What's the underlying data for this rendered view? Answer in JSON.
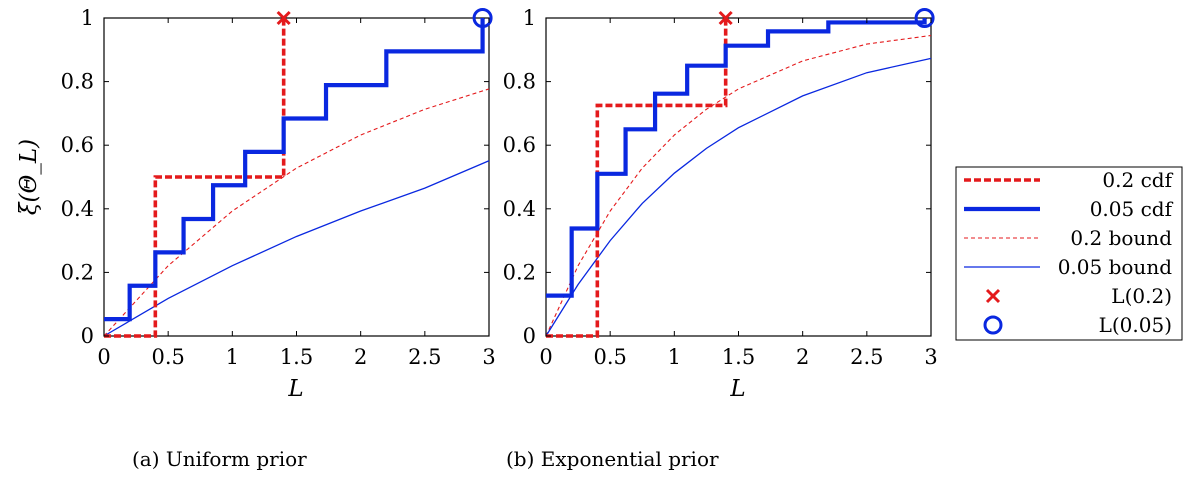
{
  "chart_data": [
    {
      "type": "line",
      "caption": "(a) Uniform prior",
      "xlabel": "L",
      "ylabel": "ξ(Θ_L)",
      "xlim": [
        0,
        3
      ],
      "ylim": [
        0,
        1
      ],
      "xticks": [
        "0",
        "0.5",
        "1",
        "1.5",
        "2",
        "2.5",
        "3"
      ],
      "yticks": [
        "0",
        "0.2",
        "0.4",
        "0.6",
        "0.8",
        "1"
      ],
      "series": [
        {
          "name": "0.2 cdf",
          "kind": "step",
          "color": "#e41a1c",
          "style": "dashed-thick",
          "x": [
            0,
            0.4,
            0.4,
            1.4,
            1.4
          ],
          "y": [
            0,
            0,
            0.5,
            0.5,
            1.0
          ]
        },
        {
          "name": "0.05 cdf",
          "kind": "step",
          "color": "#0a28e0",
          "style": "solid-thick",
          "x": [
            0,
            0.2,
            0.2,
            0.4,
            0.4,
            0.62,
            0.62,
            0.85,
            0.85,
            1.1,
            1.1,
            1.4,
            1.4,
            1.73,
            1.73,
            2.2,
            2.2,
            2.95,
            2.95
          ],
          "y": [
            0.053,
            0.053,
            0.158,
            0.158,
            0.263,
            0.263,
            0.368,
            0.368,
            0.474,
            0.474,
            0.579,
            0.579,
            0.684,
            0.684,
            0.789,
            0.789,
            0.895,
            0.895,
            1.0
          ]
        },
        {
          "name": "0.2 bound",
          "kind": "curve",
          "color": "#e41a1c",
          "style": "dashed-thin",
          "x": [
            0,
            0.5,
            1.0,
            1.5,
            2.0,
            2.5,
            3.0
          ],
          "y": [
            0,
            0.221,
            0.393,
            0.528,
            0.632,
            0.713,
            0.777
          ]
        },
        {
          "name": "0.05 bound",
          "kind": "curve",
          "color": "#0a28e0",
          "style": "solid-thin",
          "x": [
            0,
            0.5,
            1.0,
            1.5,
            2.0,
            2.5,
            3.0
          ],
          "y": [
            0,
            0.118,
            0.221,
            0.313,
            0.393,
            0.465,
            0.551
          ]
        },
        {
          "name": "L(0.2)",
          "kind": "marker",
          "marker": "x",
          "color": "#e41a1c",
          "x": [
            1.4
          ],
          "y": [
            1.0
          ]
        },
        {
          "name": "L(0.05)",
          "kind": "marker",
          "marker": "circle",
          "color": "#0a28e0",
          "x": [
            2.95
          ],
          "y": [
            1.0
          ]
        }
      ]
    },
    {
      "type": "line",
      "caption": "(b) Exponential prior",
      "xlabel": "L",
      "ylabel": "",
      "xlim": [
        0,
        3
      ],
      "ylim": [
        0,
        1
      ],
      "xticks": [
        "0",
        "0.5",
        "1",
        "1.5",
        "2",
        "2.5",
        "3"
      ],
      "yticks": [
        "0",
        "0.2",
        "0.4",
        "0.6",
        "0.8",
        "1"
      ],
      "series": [
        {
          "name": "0.2 cdf",
          "kind": "step",
          "color": "#e41a1c",
          "style": "dashed-thick",
          "x": [
            0,
            0.4,
            0.4,
            1.4,
            1.4
          ],
          "y": [
            0,
            0,
            0.725,
            0.725,
            1.0
          ]
        },
        {
          "name": "0.05 cdf",
          "kind": "step",
          "color": "#0a28e0",
          "style": "solid-thick",
          "x": [
            0,
            0.2,
            0.2,
            0.4,
            0.4,
            0.62,
            0.62,
            0.85,
            0.85,
            1.1,
            1.1,
            1.4,
            1.4,
            1.73,
            1.73,
            2.2,
            2.2,
            2.95,
            2.95
          ],
          "y": [
            0.127,
            0.127,
            0.338,
            0.338,
            0.51,
            0.51,
            0.65,
            0.65,
            0.762,
            0.762,
            0.85,
            0.85,
            0.913,
            0.913,
            0.958,
            0.958,
            0.986,
            0.986,
            1.0
          ]
        },
        {
          "name": "0.2 bound",
          "kind": "curve",
          "color": "#e41a1c",
          "style": "dashed-thin",
          "x": [
            0,
            0.25,
            0.5,
            0.75,
            1.0,
            1.25,
            1.5,
            2.0,
            2.5,
            3.0
          ],
          "y": [
            0,
            0.221,
            0.393,
            0.528,
            0.632,
            0.713,
            0.777,
            0.865,
            0.918,
            0.945
          ]
        },
        {
          "name": "0.05 bound",
          "kind": "curve",
          "color": "#0a28e0",
          "style": "solid-thin",
          "x": [
            0,
            0.25,
            0.5,
            0.75,
            1.0,
            1.25,
            1.5,
            2.0,
            2.5,
            3.0
          ],
          "y": [
            0,
            0.162,
            0.3,
            0.417,
            0.512,
            0.59,
            0.655,
            0.755,
            0.828,
            0.873
          ]
        },
        {
          "name": "L(0.2)",
          "kind": "marker",
          "marker": "x",
          "color": "#e41a1c",
          "x": [
            1.4
          ],
          "y": [
            1.0
          ]
        },
        {
          "name": "L(0.05)",
          "kind": "marker",
          "marker": "circle",
          "color": "#0a28e0",
          "x": [
            2.95
          ],
          "y": [
            1.0
          ]
        }
      ]
    }
  ],
  "legend": {
    "placement": "right",
    "entries": [
      {
        "label": "0.2 cdf",
        "color": "#e41a1c",
        "style": "dashed-thick"
      },
      {
        "label": "0.05 cdf",
        "color": "#0a28e0",
        "style": "solid-thick"
      },
      {
        "label": "0.2 bound",
        "color": "#e41a1c",
        "style": "dashed-thin"
      },
      {
        "label": "0.05 bound",
        "color": "#0a28e0",
        "style": "solid-thin"
      },
      {
        "label": "L(0.2)",
        "color": "#e41a1c",
        "style": "marker-x"
      },
      {
        "label": "L(0.05)",
        "color": "#0a28e0",
        "style": "marker-circle"
      }
    ]
  }
}
